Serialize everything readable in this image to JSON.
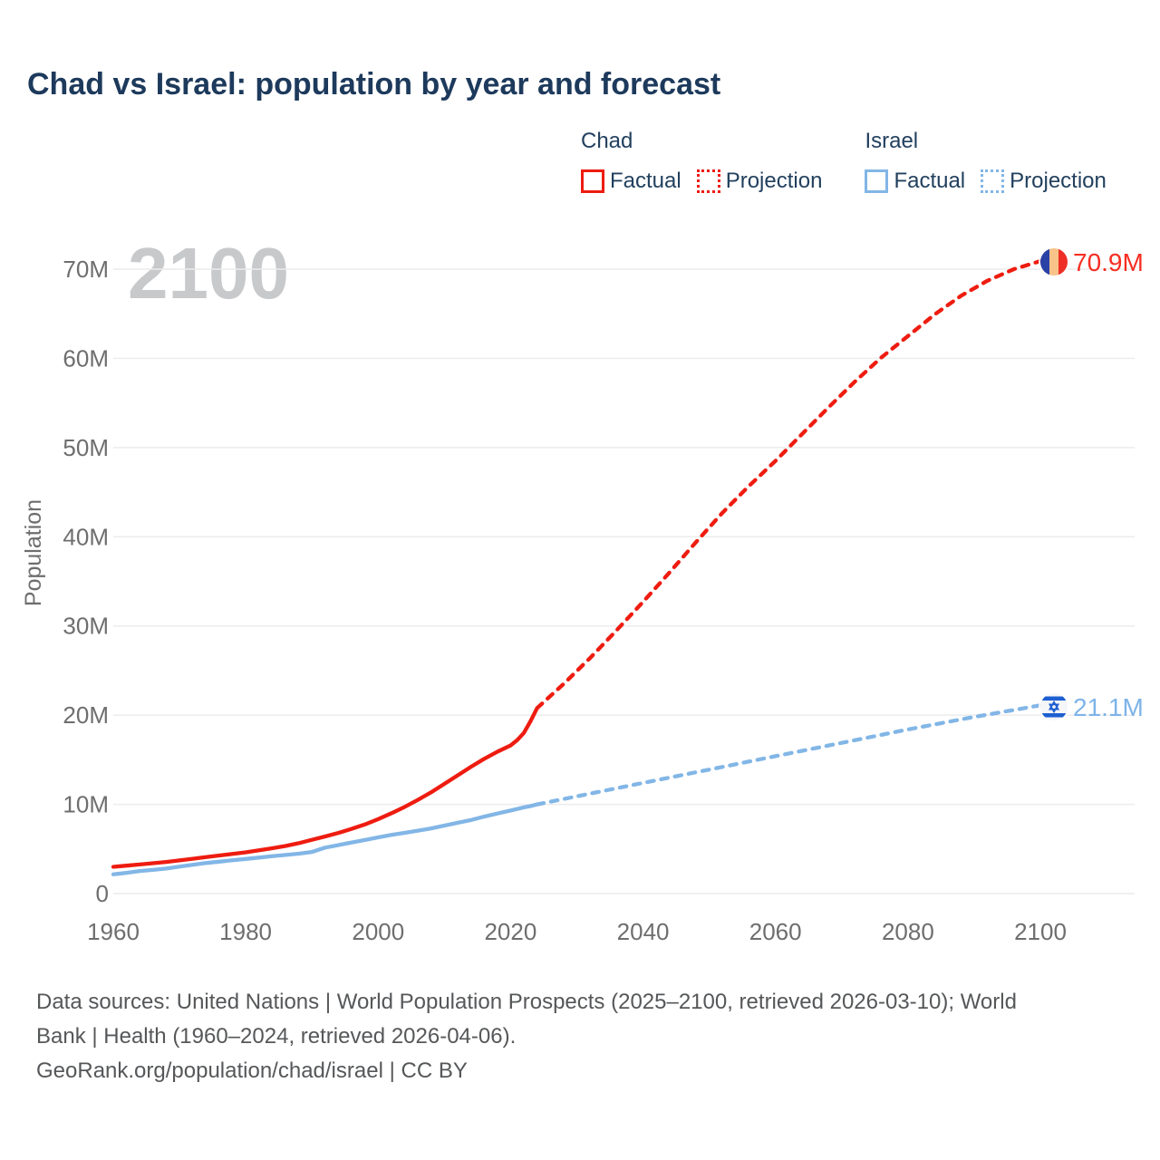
{
  "title": "Chad vs Israel: population by year and forecast",
  "watermark": "2100",
  "legend": {
    "groups": [
      {
        "label": "Chad",
        "color": "#ee1c10",
        "items": [
          {
            "label": "Factual",
            "style": "solid"
          },
          {
            "label": "Projection",
            "style": "dotted"
          }
        ]
      },
      {
        "label": "Israel",
        "color": "#82b6e6",
        "items": [
          {
            "label": "Factual",
            "style": "solid"
          },
          {
            "label": "Projection",
            "style": "dotted"
          }
        ]
      }
    ]
  },
  "end_labels": [
    {
      "name": "chad",
      "value": "70.9M",
      "color": "#f62e22",
      "flag": "chad-flag"
    },
    {
      "name": "israel",
      "value": "21.1M",
      "color": "#7db4e8",
      "flag": "israel-flag"
    }
  ],
  "footer": {
    "lines": [
      "Data sources: United Nations | World Population Prospects (2025–2100, retrieved 2026-03-10); World",
      "Bank | Health (1960–2024, retrieved 2026-04-06).",
      "GeoRank.org/population/chad/israel | CC BY"
    ]
  },
  "chart_data": {
    "type": "line",
    "title": "Chad vs Israel: population by year and forecast",
    "xlabel": "",
    "ylabel": "Population",
    "xlim": [
      1958,
      2114
    ],
    "ylim": [
      0,
      73
    ],
    "grid": "horizontal",
    "legend_position": "top-right",
    "xticks": {
      "values": [
        1960,
        1980,
        2000,
        2020,
        2040,
        2060,
        2080,
        2100
      ],
      "labels": [
        "1960",
        "1980",
        "2000",
        "2020",
        "2040",
        "2060",
        "2080",
        "2100"
      ]
    },
    "yticks": {
      "values": [
        0,
        10,
        20,
        30,
        40,
        50,
        60,
        70
      ],
      "labels": [
        "0",
        "10M",
        "20M",
        "30M",
        "40M",
        "50M",
        "60M",
        "70M"
      ]
    },
    "series": [
      {
        "name": "Chad Factual",
        "country": "Chad",
        "phase": "factual",
        "color": "#ee1c10",
        "line": "solid",
        "points": [
          [
            1960,
            3.0
          ],
          [
            1962,
            3.13
          ],
          [
            1964,
            3.26
          ],
          [
            1966,
            3.4
          ],
          [
            1968,
            3.55
          ],
          [
            1970,
            3.72
          ],
          [
            1972,
            3.9
          ],
          [
            1974,
            4.09
          ],
          [
            1976,
            4.27
          ],
          [
            1978,
            4.44
          ],
          [
            1980,
            4.62
          ],
          [
            1982,
            4.85
          ],
          [
            1984,
            5.08
          ],
          [
            1986,
            5.33
          ],
          [
            1988,
            5.65
          ],
          [
            1990,
            6.02
          ],
          [
            1992,
            6.4
          ],
          [
            1994,
            6.8
          ],
          [
            1996,
            7.25
          ],
          [
            1998,
            7.75
          ],
          [
            2000,
            8.34
          ],
          [
            2002,
            9.0
          ],
          [
            2004,
            9.71
          ],
          [
            2006,
            10.5
          ],
          [
            2008,
            11.35
          ],
          [
            2010,
            12.3
          ],
          [
            2012,
            13.25
          ],
          [
            2014,
            14.2
          ],
          [
            2016,
            15.1
          ],
          [
            2018,
            15.9
          ],
          [
            2020,
            16.6
          ],
          [
            2021,
            17.2
          ],
          [
            2022,
            18.0
          ],
          [
            2023,
            19.3
          ],
          [
            2024,
            20.8
          ]
        ]
      },
      {
        "name": "Chad Projection",
        "country": "Chad",
        "phase": "projection",
        "color": "#ee1c10",
        "line": "dotted",
        "points": [
          [
            2024,
            20.8
          ],
          [
            2028,
            23.5
          ],
          [
            2032,
            26.4
          ],
          [
            2036,
            29.5
          ],
          [
            2040,
            32.7
          ],
          [
            2044,
            36.0
          ],
          [
            2048,
            39.4
          ],
          [
            2052,
            42.7
          ],
          [
            2056,
            45.7
          ],
          [
            2060,
            48.5
          ],
          [
            2064,
            51.5
          ],
          [
            2068,
            54.5
          ],
          [
            2072,
            57.4
          ],
          [
            2076,
            60.1
          ],
          [
            2080,
            62.5
          ],
          [
            2084,
            64.9
          ],
          [
            2088,
            67.0
          ],
          [
            2092,
            68.7
          ],
          [
            2096,
            70.0
          ],
          [
            2100,
            70.9
          ]
        ]
      },
      {
        "name": "Israel Factual",
        "country": "Israel",
        "phase": "factual",
        "color": "#82b6e6",
        "line": "solid",
        "points": [
          [
            1960,
            2.15
          ],
          [
            1962,
            2.33
          ],
          [
            1964,
            2.53
          ],
          [
            1966,
            2.65
          ],
          [
            1968,
            2.8
          ],
          [
            1970,
            3.02
          ],
          [
            1972,
            3.23
          ],
          [
            1974,
            3.42
          ],
          [
            1976,
            3.58
          ],
          [
            1978,
            3.74
          ],
          [
            1980,
            3.88
          ],
          [
            1982,
            4.03
          ],
          [
            1984,
            4.2
          ],
          [
            1986,
            4.33
          ],
          [
            1988,
            4.47
          ],
          [
            1990,
            4.66
          ],
          [
            1992,
            5.15
          ],
          [
            1994,
            5.44
          ],
          [
            1996,
            5.73
          ],
          [
            1998,
            6.0
          ],
          [
            2000,
            6.3
          ],
          [
            2002,
            6.57
          ],
          [
            2004,
            6.81
          ],
          [
            2006,
            7.05
          ],
          [
            2008,
            7.3
          ],
          [
            2010,
            7.62
          ],
          [
            2012,
            7.93
          ],
          [
            2014,
            8.24
          ],
          [
            2016,
            8.63
          ],
          [
            2018,
            8.97
          ],
          [
            2020,
            9.31
          ],
          [
            2022,
            9.66
          ],
          [
            2023,
            9.8
          ],
          [
            2024,
            10.0
          ]
        ]
      },
      {
        "name": "Israel Projection",
        "country": "Israel",
        "phase": "projection",
        "color": "#82b6e6",
        "line": "dotted",
        "points": [
          [
            2024,
            10.0
          ],
          [
            2030,
            10.9
          ],
          [
            2040,
            12.4
          ],
          [
            2050,
            13.9
          ],
          [
            2060,
            15.4
          ],
          [
            2070,
            16.9
          ],
          [
            2080,
            18.4
          ],
          [
            2090,
            19.8
          ],
          [
            2100,
            21.1
          ]
        ]
      }
    ],
    "end_annotations": [
      {
        "series": "Chad",
        "year": 2100,
        "value": 70.9,
        "label": "70.9M"
      },
      {
        "series": "Israel",
        "year": 2100,
        "value": 21.1,
        "label": "21.1M"
      }
    ]
  }
}
